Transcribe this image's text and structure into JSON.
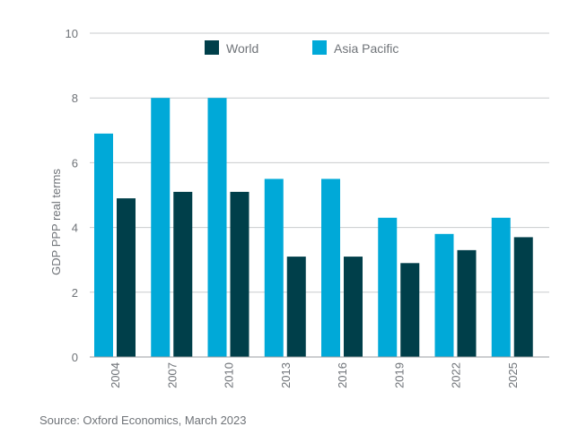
{
  "chart_data": {
    "type": "bar",
    "categories": [
      "2004",
      "2007",
      "2010",
      "2013",
      "2016",
      "2019",
      "2022",
      "2025"
    ],
    "series": [
      {
        "name": "Asia Pacific",
        "color": "#00a9d8",
        "values": [
          6.9,
          8.0,
          8.0,
          5.5,
          5.5,
          4.3,
          3.8,
          4.3
        ]
      },
      {
        "name": "World",
        "color": "#003f4a",
        "values": [
          4.9,
          5.1,
          5.1,
          3.1,
          3.1,
          2.9,
          3.3,
          3.7
        ]
      }
    ],
    "legend_order": [
      "World",
      "Asia Pacific"
    ],
    "ylabel": "GDP PPP real terms",
    "ylim": [
      0,
      10
    ],
    "yticks": [
      0,
      2,
      4,
      6,
      8,
      10
    ],
    "grid": true,
    "legend_position": "top-center",
    "source": "Source: Oxford Economics, March 2023"
  }
}
